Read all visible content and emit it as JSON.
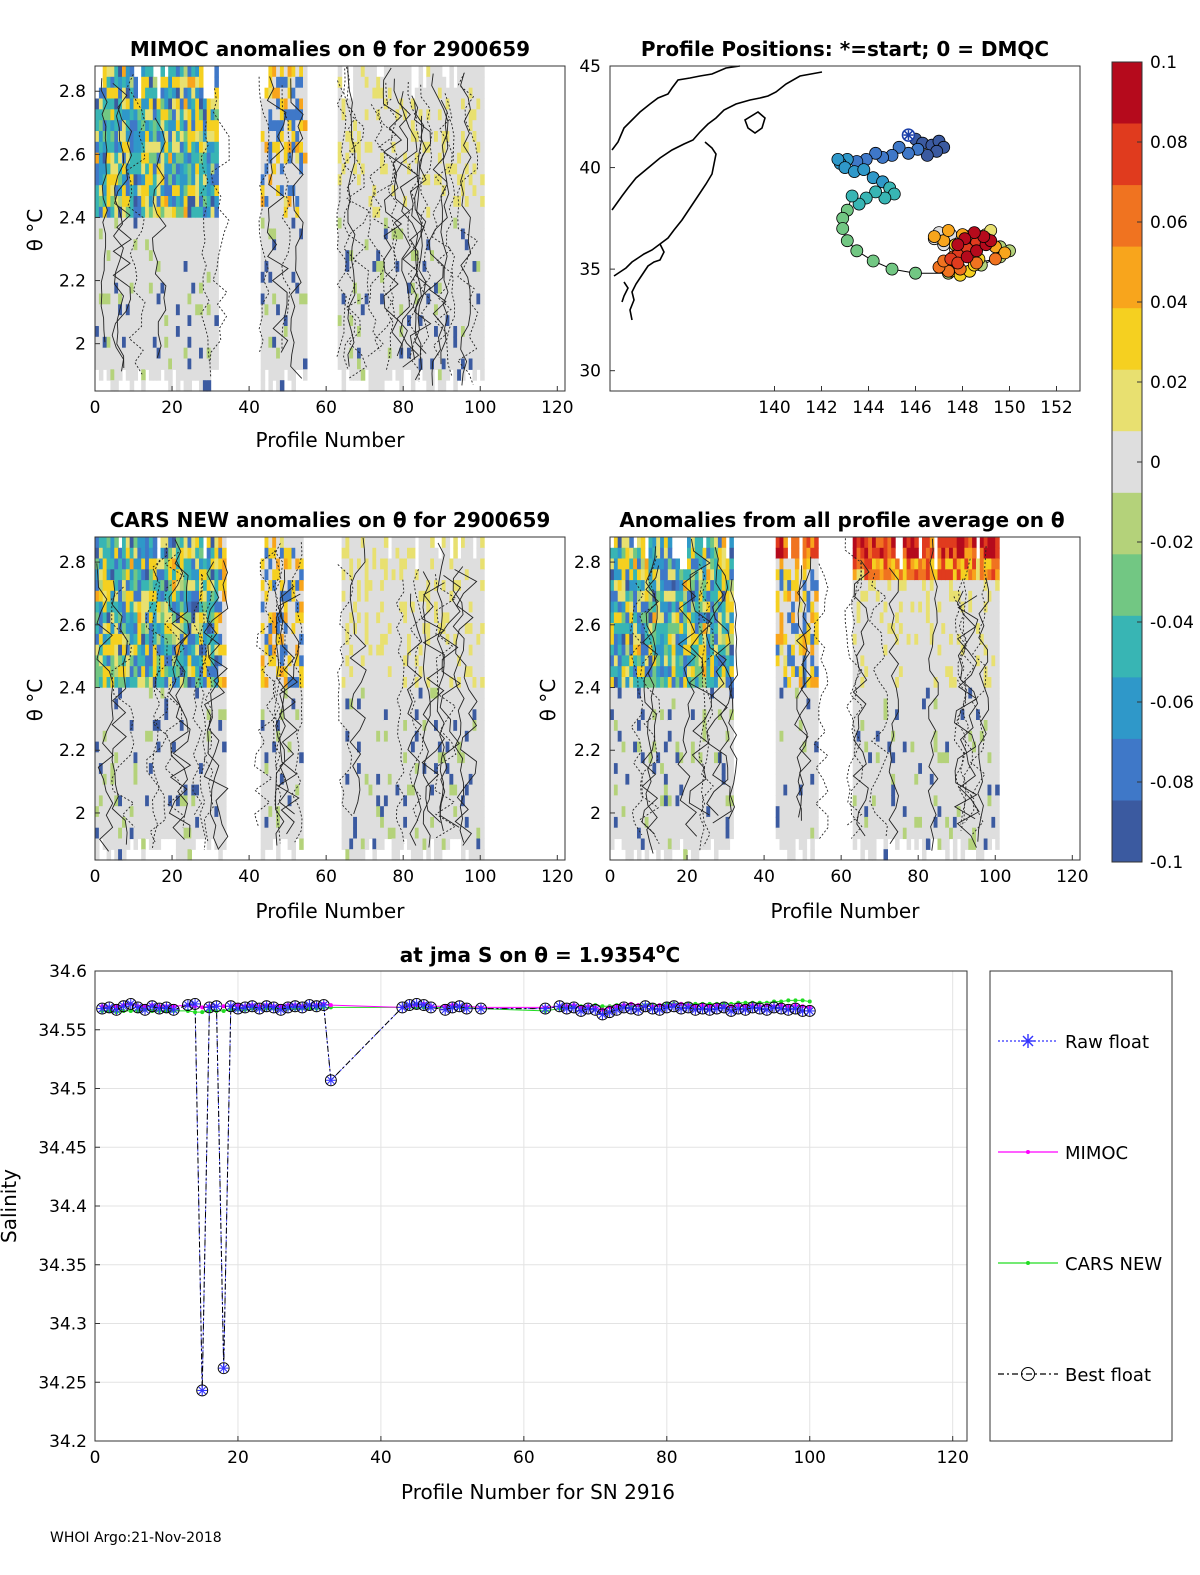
{
  "footer": "WHOI Argo:21-Nov-2018",
  "colors": {
    "raw": "#3333ff",
    "mimoc": "#ff00ff",
    "cars": "#22dd22",
    "best": "#000000",
    "cmap": [
      "#3b5aa0",
      "#3f78c8",
      "#2f98c9",
      "#38b5b4",
      "#72c783",
      "#b4d27a",
      "#dedede",
      "#e8e070",
      "#f5d020",
      "#f8a51c",
      "#f07320",
      "#e03b1e",
      "#b50a1c"
    ]
  },
  "chart_data": [
    {
      "id": "mimoc",
      "type": "heatmap",
      "title": "MIMOC anomalies on θ  for 2900659",
      "xlabel": "Profile Number",
      "ylabel": "θ °C",
      "xlim": [
        0,
        122
      ],
      "ylim": [
        1.85,
        2.88
      ],
      "xticks": [
        "0",
        "20",
        "40",
        "60",
        "80",
        "100",
        "120"
      ],
      "yticks": [
        "2",
        "2.2",
        "2.4",
        "2.6",
        "2.8"
      ],
      "gap_profiles": [
        [
          33,
          43
        ],
        [
          56,
          63
        ]
      ],
      "last_profile": 101,
      "color_limits": [
        -0.1,
        0.1
      ]
    },
    {
      "id": "positions",
      "type": "scatter",
      "title": "Profile Positions: *=start; 0 = DMQC",
      "xlim": [
        133,
        153
      ],
      "ylim": [
        29,
        45
      ],
      "xticks": [
        "140",
        "142",
        "144",
        "146",
        "148",
        "150",
        "152"
      ],
      "yticks": [
        "30",
        "35",
        "40",
        "45"
      ],
      "start": [
        145.7,
        41.6
      ],
      "lon": [
        145.7,
        146.0,
        146.3,
        146.7,
        147.0,
        147.2,
        146.9,
        146.5,
        146.1,
        145.7,
        145.3,
        145.0,
        144.6,
        144.3,
        143.9,
        143.5,
        143.1,
        142.8,
        142.7,
        143.0,
        143.4,
        143.8,
        144.2,
        144.6,
        144.9,
        145.1,
        144.7,
        144.3,
        143.9,
        143.6,
        143.3,
        143.1,
        142.9,
        142.9,
        143.1,
        143.5,
        144.2,
        145.0,
        146.0,
        147.4,
        148.3,
        148.8,
        149.6,
        150.0,
        149.6,
        148.9,
        148.2,
        147.5,
        147.0,
        146.8,
        147.2,
        147.7,
        148.2,
        148.6,
        148.8,
        149.0,
        149.2,
        148.8,
        148.3,
        147.9,
        147.7,
        147.4,
        147.5,
        147.9,
        148.3,
        148.5,
        148.7,
        148.4,
        148.0,
        147.7,
        147.2,
        146.8,
        147.4,
        148.0,
        148.8,
        149.4,
        149.8,
        149.4,
        148.6,
        147.9,
        147.4,
        147.0,
        147.2,
        147.6,
        148.0,
        148.4,
        148.8,
        149.0,
        148.6,
        148.2,
        147.8,
        147.5,
        147.8,
        148.2,
        148.6,
        149.0,
        149.2,
        148.9,
        148.5,
        148.1,
        147.8
      ],
      "lat": [
        41.6,
        41.4,
        41.2,
        41.1,
        41.3,
        41.0,
        40.8,
        40.6,
        40.9,
        40.7,
        41.0,
        40.6,
        40.5,
        40.7,
        40.4,
        40.3,
        40.4,
        40.2,
        40.4,
        40.0,
        39.8,
        39.9,
        39.5,
        39.3,
        39.0,
        38.7,
        38.5,
        38.8,
        38.5,
        38.2,
        38.6,
        37.9,
        37.5,
        37.0,
        36.4,
        35.9,
        35.4,
        35.0,
        34.8,
        34.8,
        34.9,
        35.2,
        35.6,
        35.9,
        36.1,
        36.4,
        36.6,
        36.7,
        36.8,
        36.5,
        36.2,
        36.0,
        35.8,
        36.1,
        36.4,
        36.7,
        36.9,
        36.6,
        36.3,
        36.0,
        35.6,
        35.2,
        34.9,
        34.7,
        34.9,
        35.2,
        35.5,
        35.7,
        35.9,
        36.2,
        36.4,
        36.6,
        36.9,
        36.7,
        36.4,
        36.1,
        35.8,
        35.5,
        35.3,
        35.0,
        34.9,
        35.1,
        35.4,
        35.6,
        35.9,
        36.1,
        36.3,
        36.5,
        36.3,
        36.0,
        35.7,
        35.5,
        35.3,
        35.6,
        35.9,
        36.2,
        36.4,
        36.6,
        36.8,
        36.5,
        36.2
      ]
    },
    {
      "id": "cars",
      "type": "heatmap",
      "title": "CARS NEW anomalies on θ for 2900659",
      "xlabel": "Profile Number",
      "ylabel": "θ °C",
      "xlim": [
        0,
        122
      ],
      "ylim": [
        1.85,
        2.88
      ],
      "xticks": [
        "0",
        "20",
        "40",
        "60",
        "80",
        "100",
        "120"
      ],
      "yticks": [
        "2",
        "2.2",
        "2.4",
        "2.6",
        "2.8"
      ],
      "gap_profiles": [
        [
          35,
          43
        ],
        [
          55,
          64
        ]
      ],
      "last_profile": 101,
      "color_limits": [
        -0.1,
        0.1
      ]
    },
    {
      "id": "avg",
      "type": "heatmap",
      "title": "Anomalies from all profile average on θ",
      "xlabel": "Profile Number",
      "ylabel": "θ °C",
      "xlim": [
        0,
        122
      ],
      "ylim": [
        1.85,
        2.88
      ],
      "xticks": [
        "0",
        "20",
        "40",
        "60",
        "80",
        "100",
        "120"
      ],
      "yticks": [
        "2",
        "2.2",
        "2.4",
        "2.6",
        "2.8"
      ],
      "gap_profiles": [
        [
          33,
          43
        ],
        [
          55,
          63
        ]
      ],
      "last_profile": 101,
      "color_limits": [
        -0.1,
        0.1
      ]
    },
    {
      "id": "colorbar",
      "type": "heatmap",
      "clim": [
        -0.1,
        0.1
      ],
      "ticks": [
        "0.1",
        "0.08",
        "0.06",
        "0.04",
        "0.02",
        "0",
        "-0.02",
        "-0.04",
        "-0.06",
        "-0.08",
        "-0.1"
      ]
    },
    {
      "id": "salinity",
      "type": "line",
      "title": "at jma S on θ = 1.9354°C",
      "title_main": "at jma S on θ = 1.9354",
      "title_deg": "o",
      "title_unit": "C",
      "xlabel": "Profile Number for SN 2916",
      "ylabel": "Salinity",
      "xlim": [
        0,
        122
      ],
      "ylim": [
        34.2,
        34.6
      ],
      "xticks": [
        "0",
        "20",
        "40",
        "60",
        "80",
        "100",
        "120"
      ],
      "yticks": [
        "34.6",
        "34.55",
        "34.5",
        "34.45",
        "34.4",
        "34.35",
        "34.3",
        "34.25",
        "34.2"
      ],
      "grid": true,
      "x": [
        1,
        2,
        3,
        4,
        5,
        6,
        7,
        8,
        9,
        10,
        11,
        13,
        14,
        15,
        16,
        17,
        18,
        19,
        20,
        21,
        22,
        23,
        24,
        25,
        26,
        27,
        28,
        29,
        30,
        31,
        32,
        33,
        43,
        44,
        45,
        46,
        47,
        49,
        50,
        51,
        52,
        54,
        63,
        65,
        66,
        67,
        68,
        69,
        70,
        71,
        72,
        73,
        74,
        75,
        76,
        77,
        78,
        79,
        80,
        81,
        82,
        83,
        84,
        85,
        86,
        87,
        88,
        89,
        90,
        91,
        92,
        93,
        94,
        95,
        96,
        97,
        98,
        99,
        100
      ],
      "series": [
        {
          "name": "Raw float",
          "values": [
            34.568,
            34.569,
            34.567,
            34.57,
            34.572,
            34.569,
            34.567,
            34.57,
            34.568,
            34.569,
            34.567,
            34.571,
            34.572,
            34.243,
            34.569,
            34.57,
            34.262,
            34.57,
            34.568,
            34.569,
            34.57,
            34.568,
            34.57,
            34.569,
            34.567,
            34.569,
            34.57,
            34.569,
            34.571,
            34.57,
            34.571,
            34.507,
            34.569,
            34.571,
            34.572,
            34.571,
            34.569,
            34.567,
            34.569,
            34.57,
            34.568,
            34.568,
            34.568,
            34.57,
            34.568,
            34.569,
            34.566,
            34.568,
            34.567,
            34.563,
            34.565,
            34.567,
            34.569,
            34.568,
            34.567,
            34.57,
            34.568,
            34.567,
            34.569,
            34.57,
            34.568,
            34.569,
            34.567,
            34.568,
            34.567,
            34.568,
            34.569,
            34.566,
            34.568,
            34.567,
            34.569,
            34.568,
            34.567,
            34.569,
            34.568,
            34.567,
            34.568,
            34.566,
            34.566
          ]
        },
        {
          "name": "MIMOC",
          "values": [
            34.57,
            34.569,
            34.57,
            34.571,
            34.572,
            34.57,
            34.57,
            34.571,
            34.57,
            34.57,
            34.57,
            34.571,
            34.57,
            34.569,
            34.57,
            34.57,
            34.57,
            34.57,
            34.571,
            34.57,
            34.571,
            34.57,
            34.571,
            34.57,
            34.57,
            34.571,
            34.571,
            34.57,
            34.571,
            34.571,
            34.572,
            34.571,
            34.569,
            34.57,
            34.571,
            34.572,
            34.57,
            34.57,
            34.571,
            34.57,
            34.57,
            34.569,
            34.569,
            34.57,
            34.57,
            34.571,
            34.569,
            34.57,
            34.569,
            34.567,
            34.569,
            34.57,
            34.571,
            34.572,
            34.571,
            34.57,
            34.57,
            34.571,
            34.57,
            34.571,
            34.572,
            34.571,
            34.57,
            34.571,
            34.57,
            34.571,
            34.57,
            34.57,
            34.571,
            34.57,
            34.571,
            34.57,
            34.571,
            34.57,
            34.571,
            34.57,
            34.571,
            34.57,
            34.569
          ]
        },
        {
          "name": "CARS NEW",
          "values": [
            34.566,
            34.566,
            34.565,
            34.566,
            34.566,
            34.566,
            34.567,
            34.566,
            34.566,
            34.566,
            34.566,
            34.566,
            34.565,
            34.565,
            34.566,
            34.566,
            34.566,
            34.567,
            34.567,
            34.567,
            34.568,
            34.568,
            34.568,
            34.568,
            34.568,
            34.568,
            34.568,
            34.568,
            34.568,
            34.568,
            34.569,
            34.569,
            34.569,
            34.569,
            34.569,
            34.569,
            34.569,
            34.569,
            34.569,
            34.569,
            34.569,
            34.568,
            34.566,
            34.568,
            34.569,
            34.57,
            34.57,
            34.57,
            34.571,
            34.57,
            34.57,
            34.571,
            34.571,
            34.571,
            34.571,
            34.571,
            34.571,
            34.571,
            34.572,
            34.572,
            34.572,
            34.572,
            34.572,
            34.572,
            34.572,
            34.572,
            34.572,
            34.572,
            34.573,
            34.573,
            34.573,
            34.573,
            34.573,
            34.574,
            34.574,
            34.575,
            34.575,
            34.575,
            34.574
          ]
        },
        {
          "name": "Best float",
          "values": [
            34.568,
            34.569,
            34.567,
            34.57,
            34.572,
            34.569,
            34.567,
            34.57,
            34.568,
            34.569,
            34.567,
            34.571,
            34.572,
            34.243,
            34.569,
            34.57,
            34.262,
            34.57,
            34.568,
            34.569,
            34.57,
            34.568,
            34.57,
            34.569,
            34.567,
            34.569,
            34.57,
            34.569,
            34.571,
            34.57,
            34.571,
            34.507,
            34.569,
            34.571,
            34.572,
            34.571,
            34.569,
            34.567,
            34.569,
            34.57,
            34.568,
            34.568,
            34.568,
            34.57,
            34.568,
            34.569,
            34.566,
            34.568,
            34.567,
            34.563,
            34.565,
            34.567,
            34.569,
            34.568,
            34.567,
            34.57,
            34.568,
            34.567,
            34.569,
            34.57,
            34.568,
            34.569,
            34.567,
            34.568,
            34.567,
            34.568,
            34.569,
            34.566,
            34.568,
            34.567,
            34.569,
            34.568,
            34.567,
            34.569,
            34.568,
            34.567,
            34.568,
            34.566,
            34.566
          ]
        }
      ]
    }
  ]
}
